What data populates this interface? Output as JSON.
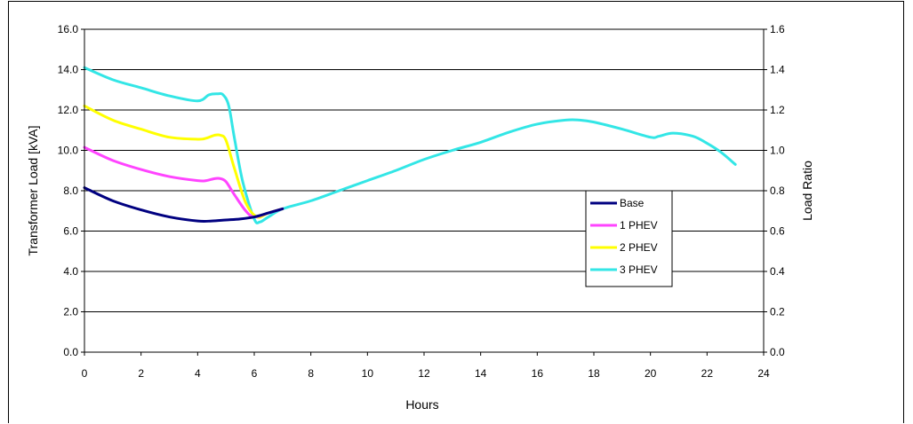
{
  "chart_data": {
    "type": "line",
    "xlabel": "Hours",
    "ylabel": "Transformer Load [kVA]",
    "y2label": "Load Ratio",
    "xlim": [
      0,
      24
    ],
    "ylim": [
      0,
      16
    ],
    "y2lim": [
      0,
      1.6
    ],
    "x_ticks": [
      "0",
      "2",
      "4",
      "6",
      "8",
      "10",
      "12",
      "14",
      "16",
      "18",
      "20",
      "22",
      "24"
    ],
    "y_ticks": [
      "0.0",
      "2.0",
      "4.0",
      "6.0",
      "8.0",
      "10.0",
      "12.0",
      "14.0",
      "16.0"
    ],
    "y2_ticks": [
      "0.0",
      "0.2",
      "0.4",
      "0.6",
      "0.8",
      "1.0",
      "1.2",
      "1.4",
      "1.6"
    ],
    "grid": "horizontal",
    "legend_position": "center-right",
    "series": [
      {
        "name": "3 PHEV",
        "color": "#33e6e6",
        "x": [
          0,
          1,
          2,
          3,
          4,
          4.4,
          4.7,
          4.9,
          5.1,
          5.3,
          5.6,
          6,
          6.2,
          6.5,
          7,
          8,
          9,
          10,
          11,
          12,
          13,
          14,
          15,
          16,
          17,
          17.5,
          18,
          19,
          20,
          20.3,
          20.8,
          21.5,
          22,
          22.5,
          23
        ],
        "values": [
          14.1,
          13.5,
          13.1,
          12.7,
          12.45,
          12.75,
          12.8,
          12.75,
          12.2,
          10.6,
          8.4,
          6.6,
          6.45,
          6.7,
          7.1,
          7.5,
          8.0,
          8.5,
          9.0,
          9.55,
          10.0,
          10.4,
          10.9,
          11.3,
          11.5,
          11.5,
          11.4,
          11.05,
          10.65,
          10.7,
          10.85,
          10.7,
          10.35,
          9.9,
          9.3
        ]
      },
      {
        "name": "2 PHEV",
        "color": "#ffff00",
        "x": [
          0,
          1,
          2,
          3,
          4,
          4.3,
          4.6,
          4.8,
          5.0,
          5.3,
          5.7,
          6.1,
          6.5,
          7
        ],
        "values": [
          12.2,
          11.5,
          11.05,
          10.65,
          10.55,
          10.6,
          10.75,
          10.75,
          10.5,
          9.1,
          7.4,
          6.7,
          6.9,
          7.1
        ]
      },
      {
        "name": "1 PHEV",
        "color": "#ff44ff",
        "x": [
          0,
          1,
          2,
          3,
          4,
          4.3,
          4.6,
          4.8,
          5.0,
          5.3,
          5.7,
          6.0,
          6.5,
          7
        ],
        "values": [
          10.15,
          9.5,
          9.05,
          8.7,
          8.5,
          8.5,
          8.6,
          8.6,
          8.45,
          7.8,
          7.0,
          6.7,
          6.9,
          7.1
        ]
      },
      {
        "name": "Base",
        "color": "#000080",
        "x": [
          0,
          1,
          2,
          3,
          4,
          4.5,
          5,
          5.5,
          6,
          6.5,
          7
        ],
        "values": [
          8.15,
          7.5,
          7.05,
          6.7,
          6.5,
          6.5,
          6.55,
          6.6,
          6.7,
          6.9,
          7.1
        ]
      }
    ],
    "legend_order": [
      "Base",
      "1 PHEV",
      "2 PHEV",
      "3 PHEV"
    ]
  }
}
